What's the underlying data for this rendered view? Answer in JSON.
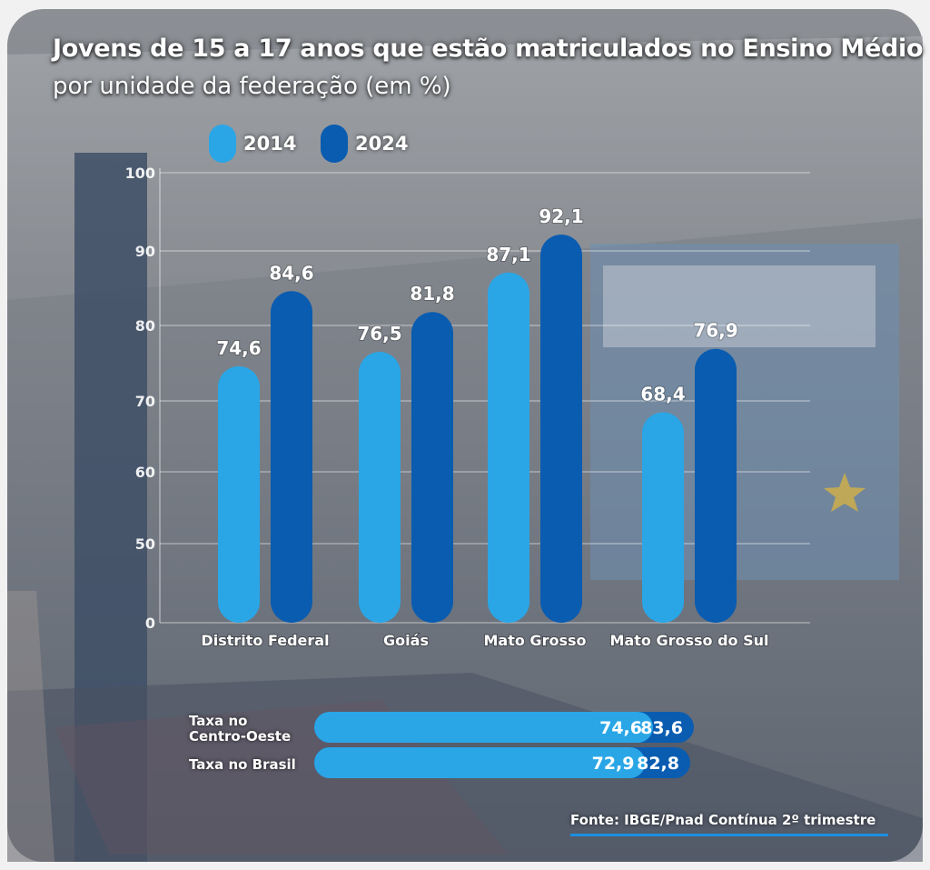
{
  "title": "Jovens de 15 a 17 anos que estão matriculados no Ensino Médio",
  "subtitle": "por unidade da federação (em %)",
  "source": "Fonte: IBGE/Pnad Contínua 2º trimestre",
  "colors": {
    "light": "#2aa6e6",
    "dark": "#0a5cb0"
  },
  "chart_data": {
    "type": "bar",
    "categories": [
      "Distrito Federal",
      "Goiás",
      "Mato Grosso",
      "Mato Grosso do Sul"
    ],
    "series": [
      {
        "name": "2014",
        "values": [
          74.6,
          76.5,
          87.1,
          68.4
        ],
        "labels": [
          "74,6",
          "76,5",
          "87,1",
          "68,4"
        ]
      },
      {
        "name": "2024",
        "values": [
          84.6,
          81.8,
          92.1,
          76.9
        ],
        "labels": [
          "84,6",
          "81,8",
          "92,1",
          "76,9"
        ]
      }
    ],
    "yticks": [
      "100",
      "90",
      "80",
      "70",
      "60",
      "50",
      "0"
    ],
    "ylim": [
      0,
      100
    ],
    "legend_position": "top-left",
    "grid": true
  },
  "rates": [
    {
      "label": "Taxa no Centro-Oeste",
      "label_lines": [
        "Taxa no",
        "Centro-Oeste"
      ],
      "value_2014": 74.6,
      "label_2014": "74,6",
      "value_2024": 83.6,
      "label_2024": "83,6"
    },
    {
      "label": "Taxa no Brasil",
      "label_lines": [
        "Taxa no Brasil"
      ],
      "value_2014": 72.9,
      "label_2014": "72,9",
      "value_2024": 82.8,
      "label_2024": "82,8"
    }
  ]
}
